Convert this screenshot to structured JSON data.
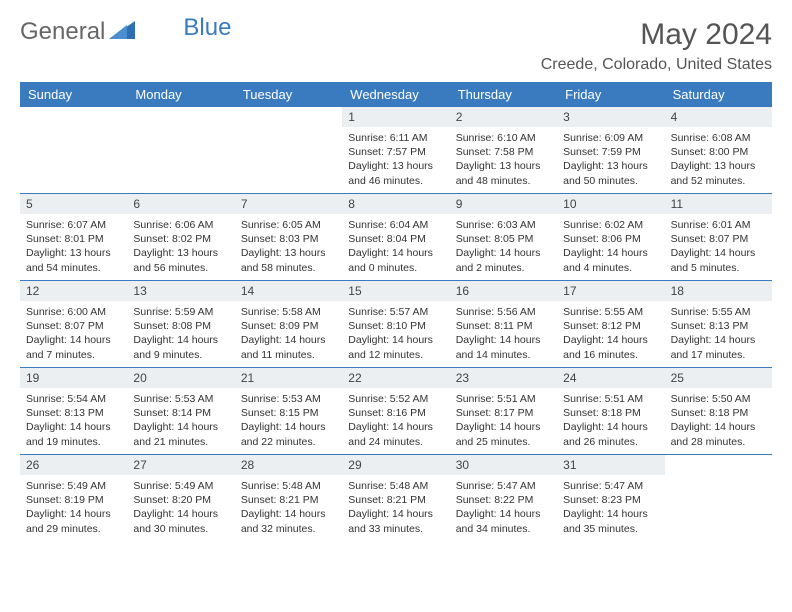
{
  "logo": {
    "general": "General",
    "blue": "Blue"
  },
  "title": "May 2024",
  "location": "Creede, Colorado, United States",
  "colors": {
    "header_bg": "#3a7bbf",
    "header_text": "#ffffff",
    "daynum_bg": "#eceff2",
    "border": "#3a7bbf",
    "text": "#333333",
    "page_bg": "#ffffff"
  },
  "daynames": [
    "Sunday",
    "Monday",
    "Tuesday",
    "Wednesday",
    "Thursday",
    "Friday",
    "Saturday"
  ],
  "weeks": [
    [
      {
        "n": "",
        "sr": "",
        "ss": "",
        "dl": ""
      },
      {
        "n": "",
        "sr": "",
        "ss": "",
        "dl": ""
      },
      {
        "n": "",
        "sr": "",
        "ss": "",
        "dl": ""
      },
      {
        "n": "1",
        "sr": "Sunrise: 6:11 AM",
        "ss": "Sunset: 7:57 PM",
        "dl": "Daylight: 13 hours and 46 minutes."
      },
      {
        "n": "2",
        "sr": "Sunrise: 6:10 AM",
        "ss": "Sunset: 7:58 PM",
        "dl": "Daylight: 13 hours and 48 minutes."
      },
      {
        "n": "3",
        "sr": "Sunrise: 6:09 AM",
        "ss": "Sunset: 7:59 PM",
        "dl": "Daylight: 13 hours and 50 minutes."
      },
      {
        "n": "4",
        "sr": "Sunrise: 6:08 AM",
        "ss": "Sunset: 8:00 PM",
        "dl": "Daylight: 13 hours and 52 minutes."
      }
    ],
    [
      {
        "n": "5",
        "sr": "Sunrise: 6:07 AM",
        "ss": "Sunset: 8:01 PM",
        "dl": "Daylight: 13 hours and 54 minutes."
      },
      {
        "n": "6",
        "sr": "Sunrise: 6:06 AM",
        "ss": "Sunset: 8:02 PM",
        "dl": "Daylight: 13 hours and 56 minutes."
      },
      {
        "n": "7",
        "sr": "Sunrise: 6:05 AM",
        "ss": "Sunset: 8:03 PM",
        "dl": "Daylight: 13 hours and 58 minutes."
      },
      {
        "n": "8",
        "sr": "Sunrise: 6:04 AM",
        "ss": "Sunset: 8:04 PM",
        "dl": "Daylight: 14 hours and 0 minutes."
      },
      {
        "n": "9",
        "sr": "Sunrise: 6:03 AM",
        "ss": "Sunset: 8:05 PM",
        "dl": "Daylight: 14 hours and 2 minutes."
      },
      {
        "n": "10",
        "sr": "Sunrise: 6:02 AM",
        "ss": "Sunset: 8:06 PM",
        "dl": "Daylight: 14 hours and 4 minutes."
      },
      {
        "n": "11",
        "sr": "Sunrise: 6:01 AM",
        "ss": "Sunset: 8:07 PM",
        "dl": "Daylight: 14 hours and 5 minutes."
      }
    ],
    [
      {
        "n": "12",
        "sr": "Sunrise: 6:00 AM",
        "ss": "Sunset: 8:07 PM",
        "dl": "Daylight: 14 hours and 7 minutes."
      },
      {
        "n": "13",
        "sr": "Sunrise: 5:59 AM",
        "ss": "Sunset: 8:08 PM",
        "dl": "Daylight: 14 hours and 9 minutes."
      },
      {
        "n": "14",
        "sr": "Sunrise: 5:58 AM",
        "ss": "Sunset: 8:09 PM",
        "dl": "Daylight: 14 hours and 11 minutes."
      },
      {
        "n": "15",
        "sr": "Sunrise: 5:57 AM",
        "ss": "Sunset: 8:10 PM",
        "dl": "Daylight: 14 hours and 12 minutes."
      },
      {
        "n": "16",
        "sr": "Sunrise: 5:56 AM",
        "ss": "Sunset: 8:11 PM",
        "dl": "Daylight: 14 hours and 14 minutes."
      },
      {
        "n": "17",
        "sr": "Sunrise: 5:55 AM",
        "ss": "Sunset: 8:12 PM",
        "dl": "Daylight: 14 hours and 16 minutes."
      },
      {
        "n": "18",
        "sr": "Sunrise: 5:55 AM",
        "ss": "Sunset: 8:13 PM",
        "dl": "Daylight: 14 hours and 17 minutes."
      }
    ],
    [
      {
        "n": "19",
        "sr": "Sunrise: 5:54 AM",
        "ss": "Sunset: 8:13 PM",
        "dl": "Daylight: 14 hours and 19 minutes."
      },
      {
        "n": "20",
        "sr": "Sunrise: 5:53 AM",
        "ss": "Sunset: 8:14 PM",
        "dl": "Daylight: 14 hours and 21 minutes."
      },
      {
        "n": "21",
        "sr": "Sunrise: 5:53 AM",
        "ss": "Sunset: 8:15 PM",
        "dl": "Daylight: 14 hours and 22 minutes."
      },
      {
        "n": "22",
        "sr": "Sunrise: 5:52 AM",
        "ss": "Sunset: 8:16 PM",
        "dl": "Daylight: 14 hours and 24 minutes."
      },
      {
        "n": "23",
        "sr": "Sunrise: 5:51 AM",
        "ss": "Sunset: 8:17 PM",
        "dl": "Daylight: 14 hours and 25 minutes."
      },
      {
        "n": "24",
        "sr": "Sunrise: 5:51 AM",
        "ss": "Sunset: 8:18 PM",
        "dl": "Daylight: 14 hours and 26 minutes."
      },
      {
        "n": "25",
        "sr": "Sunrise: 5:50 AM",
        "ss": "Sunset: 8:18 PM",
        "dl": "Daylight: 14 hours and 28 minutes."
      }
    ],
    [
      {
        "n": "26",
        "sr": "Sunrise: 5:49 AM",
        "ss": "Sunset: 8:19 PM",
        "dl": "Daylight: 14 hours and 29 minutes."
      },
      {
        "n": "27",
        "sr": "Sunrise: 5:49 AM",
        "ss": "Sunset: 8:20 PM",
        "dl": "Daylight: 14 hours and 30 minutes."
      },
      {
        "n": "28",
        "sr": "Sunrise: 5:48 AM",
        "ss": "Sunset: 8:21 PM",
        "dl": "Daylight: 14 hours and 32 minutes."
      },
      {
        "n": "29",
        "sr": "Sunrise: 5:48 AM",
        "ss": "Sunset: 8:21 PM",
        "dl": "Daylight: 14 hours and 33 minutes."
      },
      {
        "n": "30",
        "sr": "Sunrise: 5:47 AM",
        "ss": "Sunset: 8:22 PM",
        "dl": "Daylight: 14 hours and 34 minutes."
      },
      {
        "n": "31",
        "sr": "Sunrise: 5:47 AM",
        "ss": "Sunset: 8:23 PM",
        "dl": "Daylight: 14 hours and 35 minutes."
      },
      {
        "n": "",
        "sr": "",
        "ss": "",
        "dl": ""
      }
    ]
  ]
}
